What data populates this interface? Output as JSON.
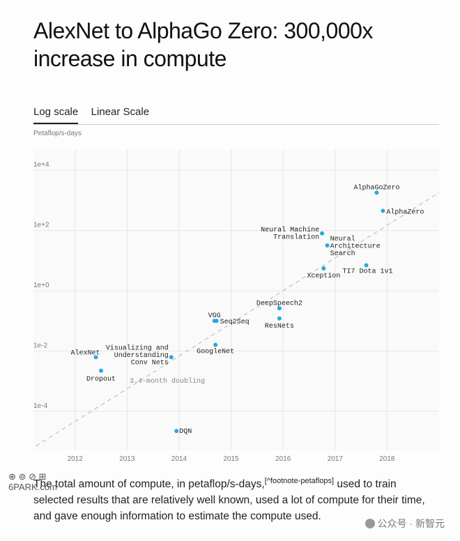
{
  "title": "AlexNet to AlphaGo Zero: 300,000x increase in compute",
  "tabs": [
    {
      "label": "Log scale",
      "active": true
    },
    {
      "label": "Linear Scale",
      "active": false
    }
  ],
  "caption": {
    "text_before": "The total amount of compute, in petaflop/s-days,",
    "footnote": "[^footnote-petaflops]",
    "text_after": " used to train selected results that are relatively well known, used a lot of compute for their time, and gave enough information to estimate the compute used."
  },
  "watermarks": {
    "left_line1": "⊕ ⊚ ⊘ ⊞",
    "left_line2": "6PARK.com",
    "right": "公众号 · 新智元"
  },
  "colors": {
    "point": "#29a8e0",
    "grid": "#e6e6e6",
    "trend": "#c4c4c4",
    "text": "#111111"
  },
  "chart_data": {
    "type": "scatter",
    "yscale": "log",
    "ylabel": "Petaflop/s-days",
    "xlim": [
      2011.2,
      2019.0
    ],
    "ylim": [
      5e-06,
      50000
    ],
    "x_ticks": [
      2012,
      2013,
      2014,
      2015,
      2016,
      2017,
      2018
    ],
    "x_tick_labels": [
      "2012",
      "2013",
      "2014",
      "2015",
      "2016",
      "2017",
      "2018"
    ],
    "y_ticks": [
      0.0001,
      0.01,
      1,
      100,
      10000
    ],
    "y_tick_labels": [
      "1e-4",
      "1e-2",
      "1e+0",
      "1e+2",
      "1e+4"
    ],
    "grid": true,
    "points": [
      {
        "label": "AlexNet",
        "x": 2012.4,
        "y": 0.0062
      },
      {
        "label": "Dropout",
        "x": 2012.5,
        "y": 0.0022
      },
      {
        "label": "Visualizing and\nUnderstanding\nConv Nets",
        "x": 2013.85,
        "y": 0.0062
      },
      {
        "label": "DQN",
        "x": 2013.95,
        "y": 2.2e-05
      },
      {
        "label": "GoogleNet",
        "x": 2014.7,
        "y": 0.016
      },
      {
        "label": "VGG",
        "x": 2014.68,
        "y": 0.1
      },
      {
        "label": "Seq2Seq",
        "x": 2014.72,
        "y": 0.1
      },
      {
        "label": "DeepSpeech2",
        "x": 2015.93,
        "y": 0.26
      },
      {
        "label": "ResNets",
        "x": 2015.93,
        "y": 0.12
      },
      {
        "label": "Neural Machine\nTranslation",
        "x": 2016.75,
        "y": 80
      },
      {
        "label": "Neural\nArchitecture\nSearch",
        "x": 2016.85,
        "y": 32
      },
      {
        "label": "Xception",
        "x": 2016.78,
        "y": 5.5
      },
      {
        "label": "TI7 Dota 1v1",
        "x": 2017.6,
        "y": 7
      },
      {
        "label": "AlphaGoZero",
        "x": 2017.8,
        "y": 1800
      },
      {
        "label": "AlphaZero",
        "x": 2017.92,
        "y": 450
      }
    ],
    "trend": {
      "label": "3.4-month doubling",
      "x": [
        2011.25,
        2019.0
      ],
      "y": [
        7e-06,
        1800
      ]
    }
  }
}
